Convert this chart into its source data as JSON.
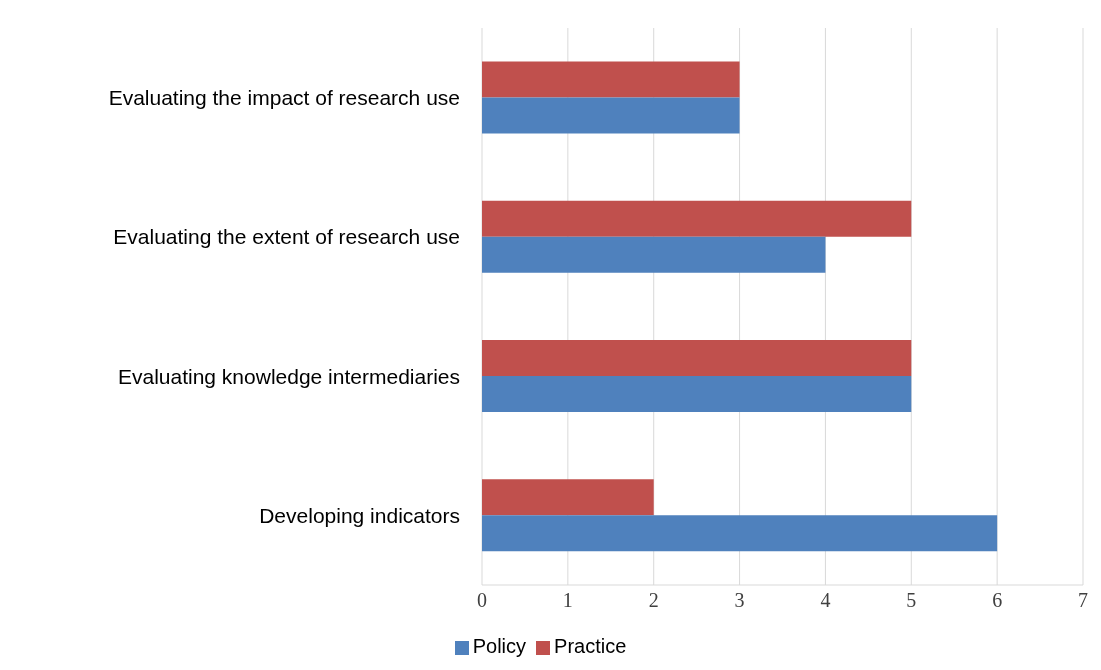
{
  "chart_data": {
    "type": "bar",
    "orientation": "horizontal",
    "categories": [
      "Evaluating the impact of research use",
      "Evaluating the extent of research use",
      "Evaluating knowledge intermediaries",
      "Developing indicators"
    ],
    "series": [
      {
        "name": "Practice",
        "color": "#c0504d",
        "values": [
          3,
          5,
          5,
          2
        ]
      },
      {
        "name": "Policy",
        "color": "#4f81bd",
        "values": [
          3,
          4,
          5,
          6
        ]
      }
    ],
    "xlim": [
      0,
      7
    ],
    "xticks": [
      0,
      1,
      2,
      3,
      4,
      5,
      6,
      7
    ],
    "grid": "x",
    "legend": "bottom"
  }
}
